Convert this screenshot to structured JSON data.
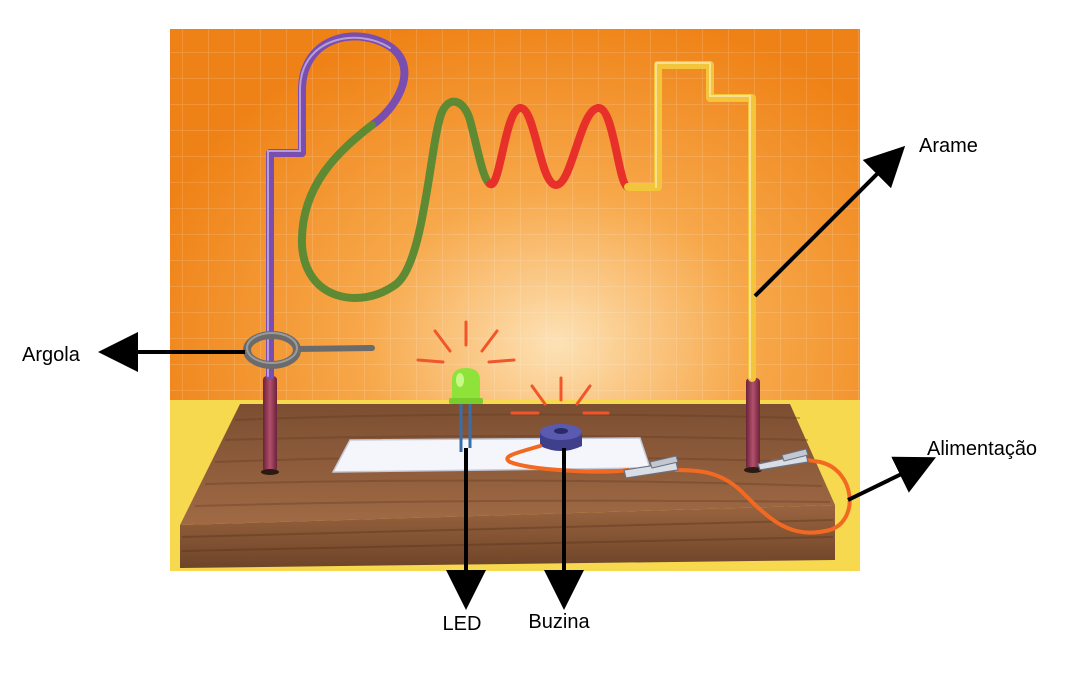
{
  "labels": {
    "arame": "Arame",
    "argola": "Argola",
    "alimentacao": "Alimentação",
    "led": "LED",
    "buzina": "Buzina"
  },
  "colors": {
    "background_orange": "#f28c1c",
    "background_glow": "#fde0b0",
    "table_yellow": "#f3d23a",
    "wood": "#8a5a3a",
    "wire_purple": "#7a4db0",
    "wire_green": "#5e8a34",
    "wire_red": "#e8302a",
    "wire_yellow": "#f2c53a",
    "led_green": "#8fe23a",
    "buzzer_purple": "#4a4a9a",
    "power_wire_orange": "#f26a22",
    "arrow": "#000000"
  },
  "icons": [
    "buzz-wire-scene",
    "led-icon",
    "buzzer-icon",
    "alligator-clip-icon",
    "loop-handle-icon"
  ]
}
